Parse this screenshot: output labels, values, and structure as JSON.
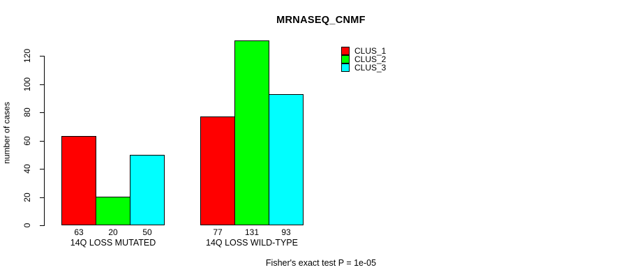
{
  "title": "MRNASEQ_CNMF",
  "footer": "Fisher's exact test P = 1e-05",
  "chart_data": {
    "type": "bar",
    "title": "MRNASEQ_CNMF",
    "categories": [
      "14Q LOSS MUTATED",
      "14Q LOSS WILD-TYPE"
    ],
    "series": [
      {
        "name": "CLUS_1",
        "color": "#ff0000",
        "values": [
          63,
          77
        ]
      },
      {
        "name": "CLUS_2",
        "color": "#00ff00",
        "values": [
          20,
          131
        ]
      },
      {
        "name": "CLUS_3",
        "color": "#00ffff",
        "values": [
          50,
          93
        ]
      }
    ],
    "bar_value_labels": [
      [
        63,
        20,
        50
      ],
      [
        77,
        131,
        93
      ]
    ],
    "xlabel": "",
    "ylabel": "number of cases",
    "yticks": [
      0,
      20,
      40,
      60,
      80,
      100,
      120
    ],
    "ylim": [
      0,
      131
    ],
    "grid": false,
    "legend_position": "top-right",
    "legend_entries": [
      "CLUS_1",
      "CLUS_2",
      "CLUS_3"
    ],
    "annotation": "Fisher's exact test P = 1e-05",
    "background_color": "#ffffff",
    "axis_color": "#000000"
  }
}
